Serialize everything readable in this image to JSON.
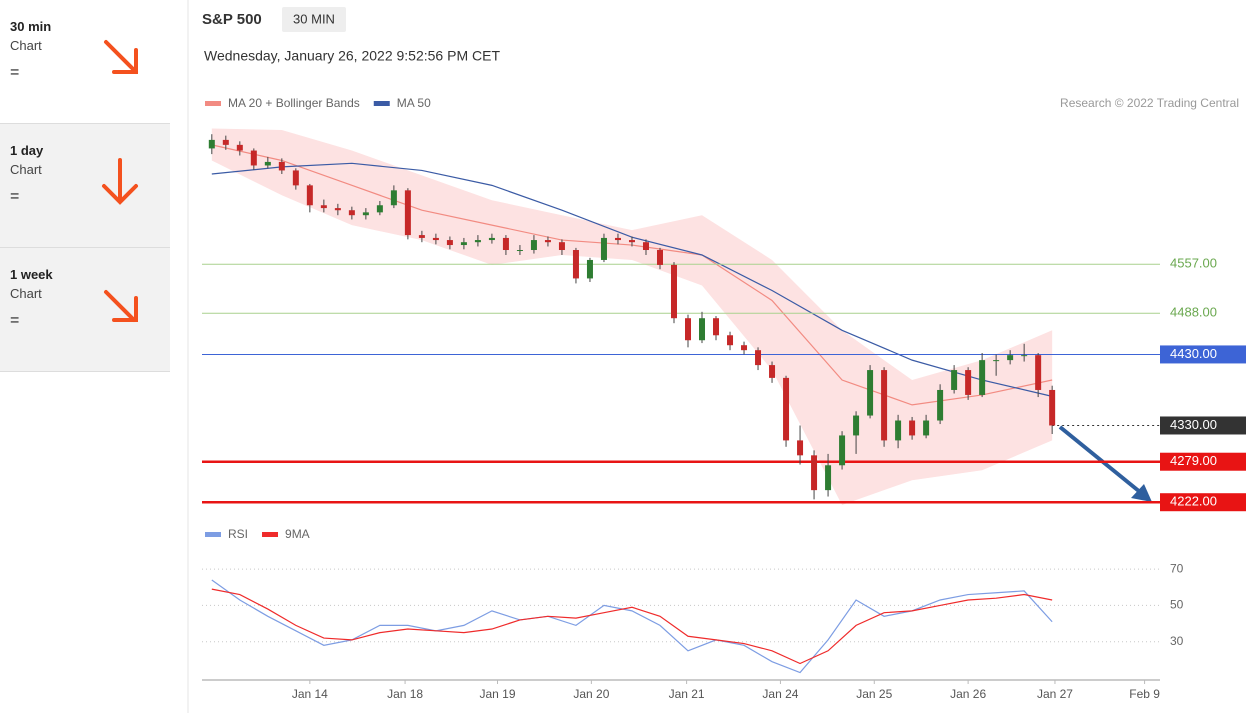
{
  "sidebar": [
    {
      "title": "30 min",
      "subtitle": "Chart",
      "symbol": "="
    },
    {
      "title": "1 day",
      "subtitle": "Chart",
      "symbol": "="
    },
    {
      "title": "1 week",
      "subtitle": "Chart",
      "symbol": "="
    }
  ],
  "chart_data": [
    {
      "type": "candlestick",
      "title": "S&P 500",
      "interval": "30 MIN",
      "subtitle": "Wednesday, January 26, 2022 9:52:56 PM CET",
      "credit": "Research © 2022 Trading Central",
      "x": [
        0,
        1,
        2,
        3,
        4,
        5,
        6,
        7,
        8,
        9,
        10,
        11,
        12,
        13,
        14,
        15,
        16,
        17,
        18,
        19,
        20,
        21,
        22,
        23,
        24,
        25,
        26,
        27,
        28,
        29,
        30,
        31,
        32,
        33,
        34,
        35,
        36,
        37,
        38,
        39,
        40,
        41,
        42,
        43,
        44,
        45,
        46,
        47,
        48,
        49,
        50,
        51,
        52,
        53,
        54,
        55,
        56,
        57,
        58,
        59,
        60
      ],
      "open": [
        4720,
        4732,
        4725,
        4717,
        4696,
        4701,
        4689,
        4668,
        4640,
        4636,
        4633,
        4626,
        4630,
        4640,
        4661,
        4598,
        4594,
        4591,
        4584,
        4588,
        4591,
        4594,
        4577,
        4577,
        4591,
        4588,
        4577,
        4537,
        4563,
        4594,
        4591,
        4588,
        4577,
        4556,
        4481,
        4450,
        4481,
        4457,
        4443,
        4436,
        4415,
        4397,
        4309,
        4288,
        4239,
        4274,
        4316,
        4344,
        4408,
        4309,
        4337,
        4316,
        4337,
        4380,
        4408,
        4373,
        4422,
        4422,
        4429,
        4429,
        4380
      ],
      "high": [
        4740,
        4738,
        4730,
        4720,
        4708,
        4706,
        4692,
        4670,
        4648,
        4642,
        4638,
        4636,
        4646,
        4668,
        4664,
        4604,
        4600,
        4596,
        4594,
        4598,
        4600,
        4598,
        4584,
        4598,
        4596,
        4592,
        4580,
        4566,
        4600,
        4600,
        4596,
        4592,
        4580,
        4560,
        4486,
        4490,
        4484,
        4462,
        4448,
        4440,
        4420,
        4400,
        4330,
        4295,
        4290,
        4322,
        4350,
        4415,
        4412,
        4345,
        4342,
        4345,
        4388,
        4415,
        4412,
        4432,
        4430,
        4436,
        4445,
        4432,
        4386
      ],
      "low": [
        4712,
        4718,
        4710,
        4690,
        4692,
        4684,
        4662,
        4630,
        4630,
        4626,
        4620,
        4620,
        4626,
        4636,
        4592,
        4588,
        4585,
        4578,
        4578,
        4582,
        4586,
        4570,
        4570,
        4572,
        4582,
        4570,
        4530,
        4532,
        4560,
        4585,
        4582,
        4570,
        4550,
        4474,
        4440,
        4446,
        4450,
        4436,
        4430,
        4408,
        4390,
        4300,
        4275,
        4226,
        4230,
        4268,
        4290,
        4340,
        4300,
        4298,
        4310,
        4312,
        4332,
        4375,
        4366,
        4370,
        4400,
        4416,
        4420,
        4370,
        4318
      ],
      "close": [
        4732,
        4725,
        4717,
        4696,
        4701,
        4689,
        4668,
        4640,
        4636,
        4633,
        4626,
        4630,
        4640,
        4661,
        4598,
        4594,
        4591,
        4584,
        4588,
        4591,
        4594,
        4577,
        4577,
        4591,
        4588,
        4577,
        4537,
        4563,
        4594,
        4591,
        4588,
        4577,
        4556,
        4481,
        4450,
        4481,
        4457,
        4443,
        4436,
        4415,
        4397,
        4309,
        4288,
        4239,
        4274,
        4316,
        4344,
        4408,
        4309,
        4337,
        4316,
        4337,
        4380,
        4408,
        4373,
        4422,
        4422,
        4429,
        4429,
        4380,
        4330
      ],
      "up_color": "#2e7d32",
      "down_color": "#c62828",
      "overlays": [
        {
          "name": "MA 20 + Bollinger Bands",
          "color": "#f28b82",
          "band_color": "#fde2e2",
          "x": [
            0,
            5,
            10,
            15,
            20,
            25,
            30,
            35,
            40,
            45,
            50,
            55,
            60
          ],
          "values": [
            4725,
            4703,
            4668,
            4633,
            4612,
            4591,
            4584,
            4570,
            4506,
            4394,
            4359,
            4373,
            4394
          ],
          "upper": [
            4748,
            4746,
            4717,
            4682,
            4647,
            4626,
            4605,
            4626,
            4563,
            4464,
            4394,
            4422,
            4464
          ],
          "lower": [
            4703,
            4654,
            4612,
            4591,
            4556,
            4570,
            4563,
            4527,
            4408,
            4218,
            4253,
            4267,
            4309
          ]
        },
        {
          "name": "MA 50",
          "color": "#3b5ba5",
          "x": [
            0,
            5,
            10,
            15,
            20,
            25,
            30,
            35,
            40,
            45,
            50,
            55,
            60
          ],
          "values": [
            4684,
            4694,
            4699,
            4689,
            4668,
            4633,
            4595,
            4570,
            4520,
            4464,
            4422,
            4394,
            4371
          ]
        }
      ],
      "levels": [
        {
          "value": 4557,
          "label": "4557.00",
          "color": "#a9d18e",
          "text_color": "#6aa84f",
          "box": false,
          "dotted": false
        },
        {
          "value": 4488,
          "label": "4488.00",
          "color": "#a9d18e",
          "text_color": "#6aa84f",
          "box": false,
          "dotted": false
        },
        {
          "value": 4430,
          "label": "4430.00",
          "color": "#3d64d6",
          "text_color": "#ffffff",
          "box": true,
          "dotted": false
        },
        {
          "value": 4330,
          "label": "4330.00",
          "color": "#333333",
          "text_color": "#ffffff",
          "box": true,
          "dotted": true
        },
        {
          "value": 4279,
          "label": "4279.00",
          "color": "#e81414",
          "text_color": "#ffffff",
          "box": true,
          "dotted": false
        },
        {
          "value": 4222,
          "label": "4222.00",
          "color": "#e81414",
          "text_color": "#ffffff",
          "box": true,
          "dotted": false
        }
      ],
      "xlim": [
        -0.7,
        67.7
      ],
      "xticks": [
        {
          "value": 7,
          "label": "Jan 14"
        },
        {
          "value": 13.8,
          "label": "Jan 18"
        },
        {
          "value": 20.4,
          "label": "Jan 19"
        },
        {
          "value": 27.1,
          "label": "Jan 20"
        },
        {
          "value": 33.9,
          "label": "Jan 21"
        },
        {
          "value": 40.6,
          "label": "Jan 24"
        },
        {
          "value": 47.3,
          "label": "Jan 25"
        },
        {
          "value": 54,
          "label": "Jan 26"
        },
        {
          "value": 60.2,
          "label": "Jan 27"
        },
        {
          "value": 66.6,
          "label": "Feb 9"
        }
      ],
      "ylim": [
        4204,
        4760
      ]
    },
    {
      "type": "line",
      "series": [
        {
          "name": "RSI",
          "color": "#7d9de3",
          "x": [
            0,
            2,
            4,
            6,
            8,
            10,
            12,
            14,
            16,
            18,
            20,
            22,
            24,
            26,
            28,
            30,
            32,
            34,
            36,
            38,
            40,
            42,
            44,
            46,
            48,
            50,
            52,
            54,
            56,
            58,
            60
          ],
          "values": [
            64,
            53,
            44,
            36,
            28,
            31,
            39,
            39,
            36,
            39,
            47,
            42,
            44,
            39,
            50,
            47,
            39,
            25,
            31,
            28,
            19,
            13,
            31,
            53,
            44,
            47,
            53,
            56,
            57,
            58,
            41
          ]
        },
        {
          "name": "9MA",
          "color": "#ef2b2b",
          "x": [
            0,
            2,
            4,
            6,
            8,
            10,
            12,
            14,
            16,
            18,
            20,
            22,
            24,
            26,
            28,
            30,
            32,
            34,
            36,
            38,
            40,
            42,
            44,
            46,
            48,
            50,
            52,
            54,
            56,
            58,
            60
          ],
          "values": [
            59,
            56,
            48,
            39,
            32,
            31,
            35,
            37,
            36,
            35,
            37,
            42,
            44,
            43,
            46,
            49,
            44,
            33,
            31,
            29,
            25,
            18,
            25,
            39,
            46,
            47,
            50,
            53,
            54,
            56,
            53
          ]
        }
      ],
      "xlim": [
        -0.7,
        67.7
      ],
      "ylim": [
        10,
        80
      ],
      "yticks": [
        70,
        50,
        30
      ],
      "grid": true
    }
  ]
}
